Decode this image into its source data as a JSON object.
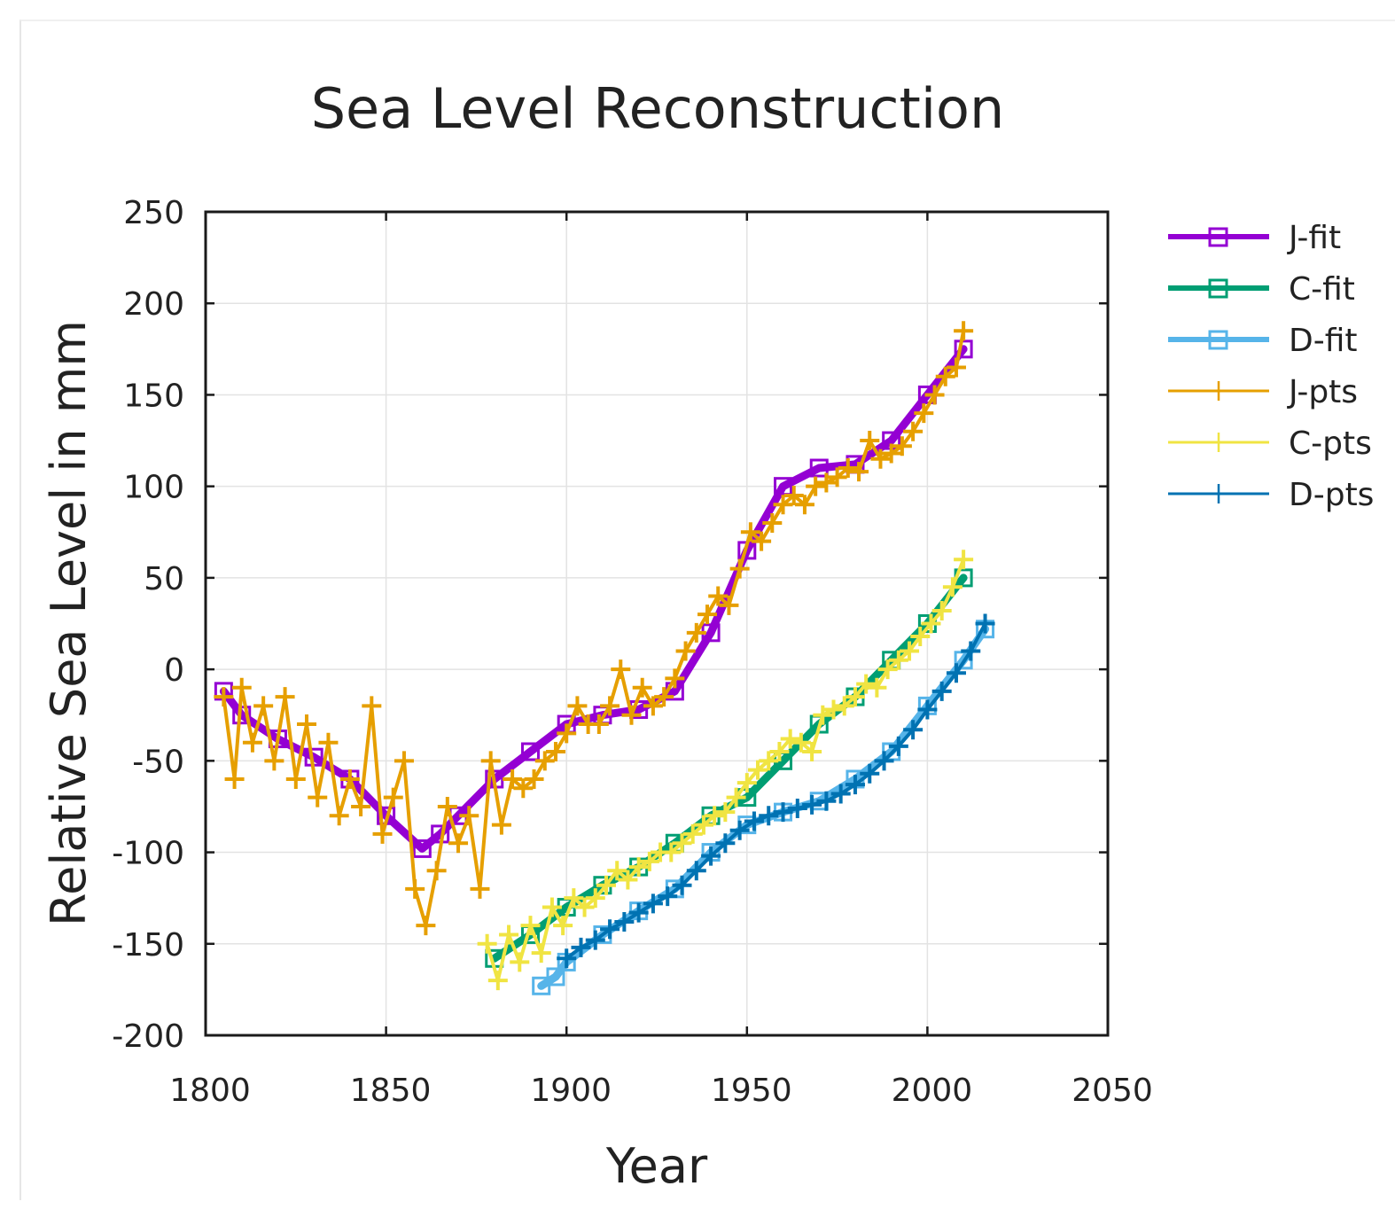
{
  "chart_data": {
    "type": "line",
    "title": "Sea Level Reconstruction",
    "xlabel": "Year",
    "ylabel": "Relative Sea Level in mm",
    "xlim": [
      1800,
      2050
    ],
    "ylim": [
      -200,
      250
    ],
    "xticks": [
      1800,
      1850,
      1900,
      1950,
      2000,
      2050
    ],
    "yticks": [
      250,
      200,
      150,
      100,
      50,
      0,
      -50,
      -100,
      -150,
      -200
    ],
    "xtick_labels": [
      "1800",
      "1850",
      "1900",
      "1950",
      "2000",
      "2050"
    ],
    "ytick_labels": [
      "250",
      "200",
      "150",
      "100",
      "50",
      "0",
      "-50",
      "-100",
      "-150",
      "-200"
    ],
    "grid": true,
    "legend_position": "right-outside",
    "series": [
      {
        "name": "J-fit",
        "color": "#9400d3",
        "style": "line-square",
        "x": [
          1805,
          1810,
          1820,
          1830,
          1840,
          1850,
          1860,
          1865,
          1870,
          1880,
          1890,
          1900,
          1910,
          1920,
          1930,
          1940,
          1950,
          1960,
          1970,
          1980,
          1990,
          2000,
          2010
        ],
        "y": [
          -12,
          -25,
          -38,
          -48,
          -60,
          -80,
          -98,
          -90,
          -80,
          -60,
          -45,
          -30,
          -25,
          -22,
          -12,
          20,
          65,
          100,
          110,
          112,
          125,
          150,
          175
        ]
      },
      {
        "name": "C-fit",
        "color": "#009e73",
        "style": "line-square",
        "x": [
          1880,
          1890,
          1900,
          1910,
          1920,
          1930,
          1940,
          1950,
          1960,
          1970,
          1980,
          1990,
          2000,
          2010
        ],
        "y": [
          -158,
          -145,
          -130,
          -118,
          -108,
          -95,
          -80,
          -70,
          -50,
          -30,
          -15,
          5,
          25,
          50
        ]
      },
      {
        "name": "D-fit",
        "color": "#56b4e9",
        "style": "line-square",
        "x": [
          1893,
          1897,
          1900,
          1910,
          1920,
          1930,
          1940,
          1950,
          1960,
          1970,
          1980,
          1990,
          2000,
          2010,
          2016
        ],
        "y": [
          -173,
          -168,
          -160,
          -145,
          -132,
          -120,
          -100,
          -85,
          -78,
          -72,
          -60,
          -45,
          -20,
          5,
          22
        ]
      },
      {
        "name": "J-pts",
        "color": "#e69f00",
        "style": "plus",
        "x": [
          1805,
          1808,
          1810,
          1813,
          1816,
          1819,
          1822,
          1825,
          1828,
          1831,
          1834,
          1837,
          1840,
          1843,
          1846,
          1849,
          1852,
          1855,
          1858,
          1861,
          1864,
          1867,
          1870,
          1873,
          1876,
          1879,
          1882,
          1885,
          1888,
          1891,
          1894,
          1897,
          1900,
          1903,
          1906,
          1909,
          1912,
          1915,
          1918,
          1921,
          1924,
          1927,
          1930,
          1933,
          1936,
          1939,
          1942,
          1945,
          1948,
          1951,
          1954,
          1957,
          1960,
          1963,
          1966,
          1969,
          1972,
          1975,
          1978,
          1981,
          1984,
          1987,
          1990,
          1993,
          1996,
          1999,
          2002,
          2005,
          2008,
          2010
        ],
        "y": [
          -15,
          -60,
          -10,
          -40,
          -20,
          -50,
          -15,
          -60,
          -30,
          -70,
          -40,
          -80,
          -60,
          -75,
          -20,
          -90,
          -70,
          -50,
          -120,
          -140,
          -110,
          -75,
          -95,
          -80,
          -120,
          -50,
          -85,
          -60,
          -65,
          -60,
          -50,
          -45,
          -35,
          -20,
          -30,
          -30,
          -20,
          0,
          -25,
          -10,
          -20,
          -15,
          -5,
          10,
          20,
          30,
          40,
          35,
          55,
          75,
          70,
          80,
          90,
          95,
          90,
          100,
          102,
          105,
          110,
          108,
          125,
          115,
          118,
          122,
          130,
          140,
          150,
          160,
          165,
          185
        ]
      },
      {
        "name": "C-pts",
        "color": "#f0e442",
        "style": "plus",
        "x": [
          1878,
          1881,
          1884,
          1887,
          1890,
          1893,
          1896,
          1899,
          1902,
          1905,
          1908,
          1911,
          1914,
          1917,
          1920,
          1923,
          1926,
          1929,
          1932,
          1935,
          1938,
          1941,
          1944,
          1947,
          1950,
          1953,
          1956,
          1959,
          1962,
          1965,
          1968,
          1971,
          1974,
          1977,
          1980,
          1983,
          1986,
          1989,
          1992,
          1995,
          1998,
          2001,
          2004,
          2007,
          2010
        ],
        "y": [
          -150,
          -170,
          -145,
          -160,
          -140,
          -155,
          -130,
          -140,
          -125,
          -130,
          -125,
          -118,
          -110,
          -115,
          -108,
          -105,
          -100,
          -100,
          -95,
          -90,
          -85,
          -80,
          -78,
          -70,
          -62,
          -55,
          -50,
          -45,
          -38,
          -40,
          -45,
          -25,
          -22,
          -20,
          -15,
          -8,
          -10,
          0,
          5,
          10,
          18,
          25,
          32,
          45,
          60
        ]
      },
      {
        "name": "D-pts",
        "color": "#0072b2",
        "style": "plus",
        "x": [
          1900,
          1904,
          1908,
          1912,
          1916,
          1920,
          1924,
          1928,
          1932,
          1936,
          1940,
          1944,
          1948,
          1952,
          1956,
          1960,
          1964,
          1968,
          1972,
          1976,
          1980,
          1984,
          1988,
          1992,
          1996,
          2000,
          2004,
          2008,
          2012,
          2016
        ],
        "y": [
          -158,
          -152,
          -148,
          -142,
          -138,
          -133,
          -128,
          -124,
          -118,
          -110,
          -102,
          -95,
          -88,
          -83,
          -80,
          -78,
          -76,
          -74,
          -72,
          -68,
          -63,
          -57,
          -50,
          -42,
          -33,
          -22,
          -12,
          -2,
          10,
          25
        ]
      }
    ]
  }
}
